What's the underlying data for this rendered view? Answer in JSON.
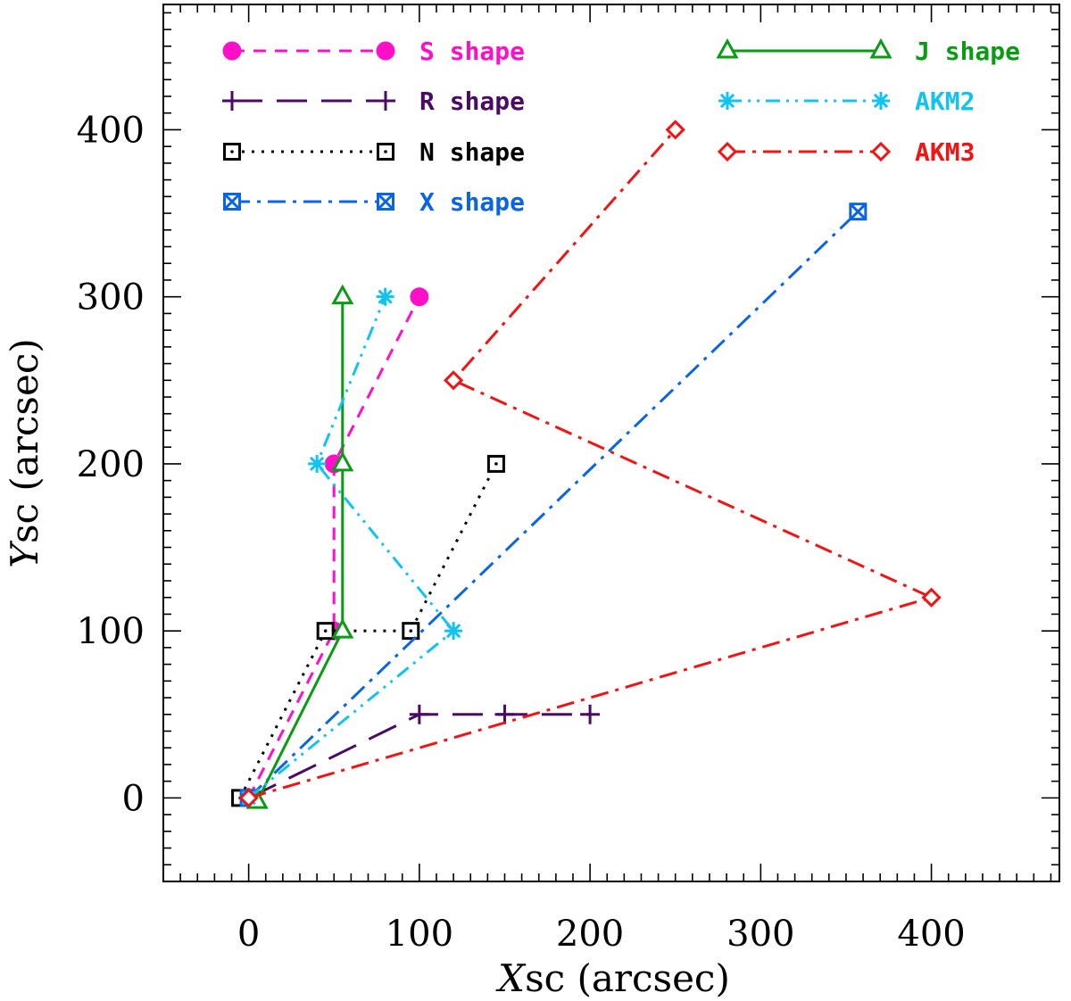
{
  "chart_data": {
    "type": "line",
    "title": "",
    "xlabel": "Xsc (arcsec)",
    "ylabel": "Ysc (arcsec)",
    "xlabel_var": "X",
    "xlabel_rest": "sc (arcsec)",
    "ylabel_var": "Y",
    "ylabel_rest": "sc (arcsec)",
    "xlim": [
      -50,
      475
    ],
    "ylim": [
      -50,
      475
    ],
    "xticks": [
      0,
      100,
      200,
      300,
      400
    ],
    "yticks": [
      0,
      100,
      200,
      300,
      400
    ],
    "xtick_labels": [
      "0",
      "100",
      "200",
      "300",
      "400"
    ],
    "ytick_labels": [
      "0",
      "100",
      "200",
      "300",
      "400"
    ],
    "minor_tick_step": 10,
    "grid": false,
    "legend_placement": "top, two columns",
    "series": [
      {
        "name": "S shape",
        "color": "#ff10c8",
        "dash": "dashed",
        "marker": "filled-circle",
        "legend_column": "left",
        "x": [
          0,
          50,
          50,
          100
        ],
        "y": [
          0,
          100,
          200,
          300
        ]
      },
      {
        "name": "R shape",
        "color": "#4b0a64",
        "dash": "long-dashed",
        "marker": "plus",
        "legend_column": "left",
        "x": [
          0,
          100,
          150,
          200
        ],
        "y": [
          0,
          50,
          50,
          50
        ]
      },
      {
        "name": "N shape",
        "color": "#000000",
        "dash": "dotted",
        "marker": "dotted-square",
        "legend_column": "left",
        "x": [
          -5,
          45,
          95,
          145
        ],
        "y": [
          0,
          100,
          100,
          200
        ]
      },
      {
        "name": "X shape",
        "color": "#0a64e6",
        "dash": "dash-dot",
        "marker": "crossed-square",
        "legend_column": "left",
        "x": [
          0,
          357
        ],
        "y": [
          0,
          351
        ]
      },
      {
        "name": "J shape",
        "color": "#0a9b14",
        "dash": "solid",
        "marker": "triangle",
        "legend_column": "right",
        "x": [
          5,
          55,
          55,
          55
        ],
        "y": [
          -2,
          100,
          200,
          300
        ]
      },
      {
        "name": "AKM2",
        "color": "#12c3f0",
        "dash": "dash-dot-dot",
        "marker": "asterisk",
        "legend_column": "right",
        "x": [
          0,
          120,
          40,
          80
        ],
        "y": [
          0,
          100,
          200,
          300
        ]
      },
      {
        "name": "AKM3",
        "color": "#f01414",
        "dash": "dash-dot",
        "marker": "diamond",
        "legend_column": "right",
        "x": [
          0,
          400,
          120,
          250
        ],
        "y": [
          0,
          120,
          250,
          400
        ]
      }
    ]
  }
}
